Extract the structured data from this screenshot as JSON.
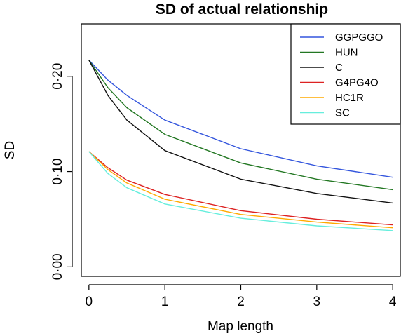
{
  "chart_data": {
    "type": "line",
    "title": "SD of actual relationship",
    "xlabel": "Map length",
    "ylabel": "SD",
    "xlim": [
      -0.1,
      4.1
    ],
    "ylim": [
      -0.01,
      0.255
    ],
    "x_ticks": [
      0,
      1,
      2,
      3,
      4
    ],
    "x_tick_labels": [
      "0",
      "1",
      "2",
      "3",
      "4"
    ],
    "y_ticks": [
      0.0,
      0.1,
      0.2
    ],
    "y_tick_labels": [
      "0·00",
      "0·10",
      "0·20"
    ],
    "grid": false,
    "legend_position": "top-right",
    "x": [
      0,
      0.25,
      0.5,
      1,
      2,
      3,
      4
    ],
    "series": [
      {
        "name": "GGPGGO",
        "color": "#3355dd",
        "values": [
          0.217,
          0.196,
          0.18,
          0.154,
          0.124,
          0.106,
          0.094
        ]
      },
      {
        "name": "HUN",
        "color": "#227722",
        "values": [
          0.217,
          0.188,
          0.167,
          0.139,
          0.109,
          0.092,
          0.081
        ]
      },
      {
        "name": "C",
        "color": "#111111",
        "values": [
          0.217,
          0.18,
          0.154,
          0.122,
          0.092,
          0.077,
          0.067
        ]
      },
      {
        "name": "G4PG4O",
        "color": "#dd2222",
        "values": [
          0.121,
          0.104,
          0.091,
          0.076,
          0.059,
          0.05,
          0.044
        ]
      },
      {
        "name": "HC1R",
        "color": "#ffaa00",
        "values": [
          0.121,
          0.102,
          0.088,
          0.071,
          0.055,
          0.047,
          0.041
        ]
      },
      {
        "name": "SC",
        "color": "#66eedd",
        "values": [
          0.121,
          0.098,
          0.083,
          0.066,
          0.051,
          0.043,
          0.038
        ]
      }
    ]
  }
}
